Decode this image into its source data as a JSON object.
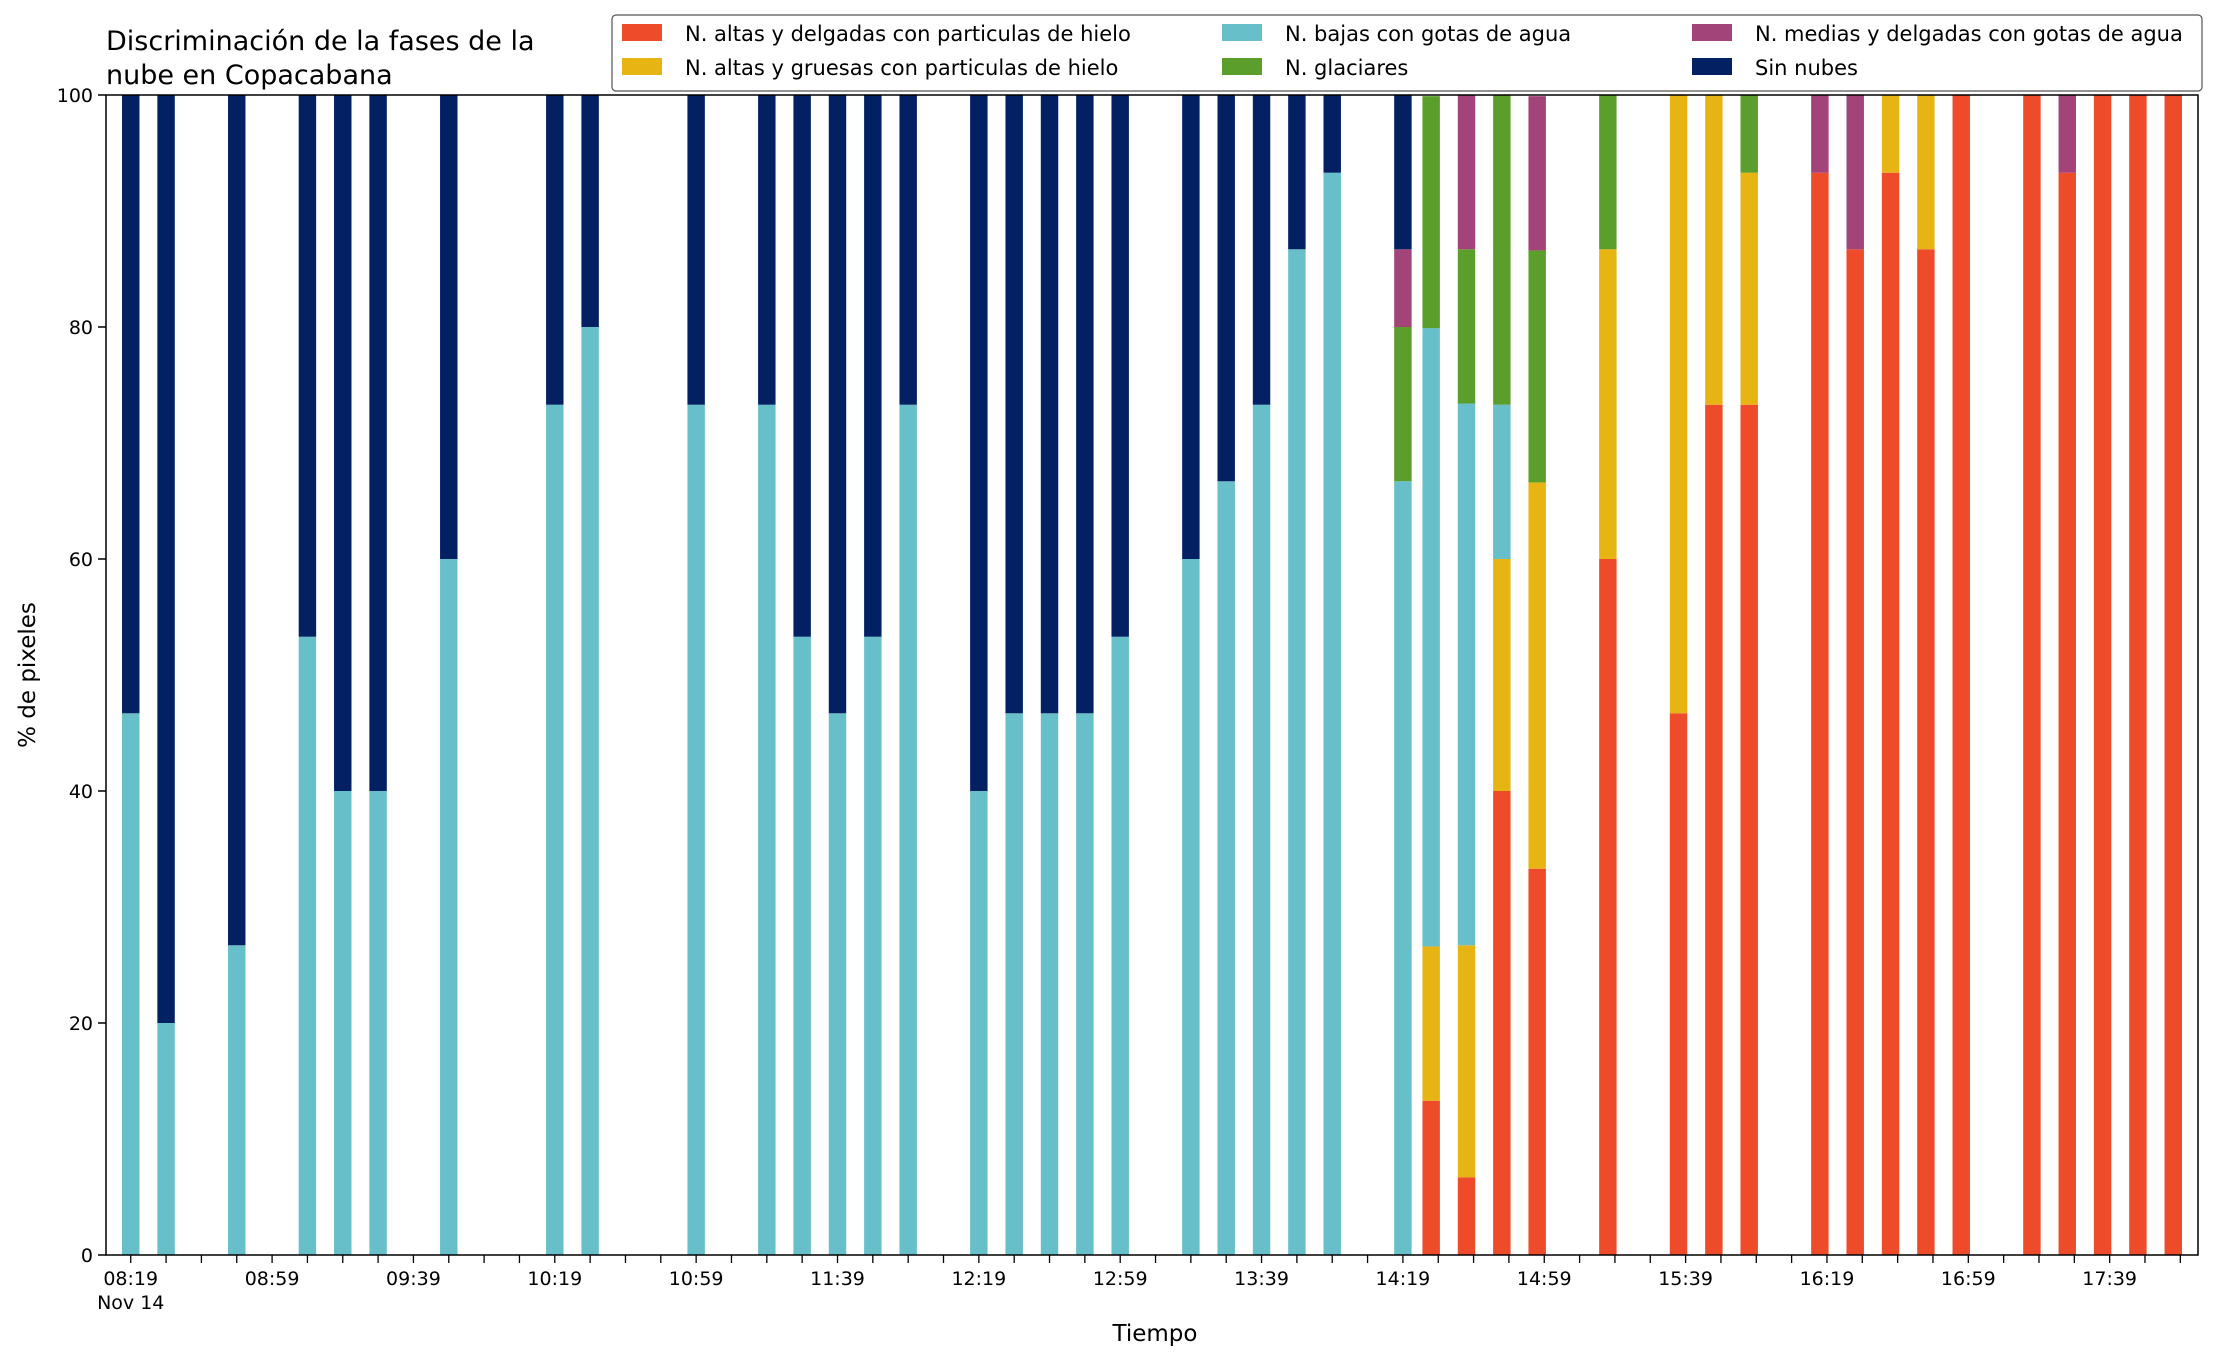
{
  "chart_data": {
    "type": "bar",
    "stacked": true,
    "title_lines": [
      "Discriminación de la fases de la",
      "nube en Copacabana"
    ],
    "xlabel": "Tiempo",
    "ylabel": "% de pixeles",
    "ylim": [
      0,
      100
    ],
    "yticks": [
      0,
      20,
      40,
      60,
      80,
      100
    ],
    "xlim_minutes": [
      "08:12",
      "18:04"
    ],
    "grid": false,
    "legend_placement": "top, 3 columns",
    "xtick_labels": [
      {
        "time": "08:19",
        "label": "08:19",
        "sublabel": "Nov 14"
      },
      {
        "time": "08:59",
        "label": "08:59"
      },
      {
        "time": "09:39",
        "label": "09:39"
      },
      {
        "time": "10:19",
        "label": "10:19"
      },
      {
        "time": "10:59",
        "label": "10:59"
      },
      {
        "time": "11:39",
        "label": "11:39"
      },
      {
        "time": "12:19",
        "label": "12:19"
      },
      {
        "time": "12:59",
        "label": "12:59"
      },
      {
        "time": "13:39",
        "label": "13:39"
      },
      {
        "time": "14:19",
        "label": "14:19"
      },
      {
        "time": "14:59",
        "label": "14:59"
      },
      {
        "time": "15:39",
        "label": "15:39"
      },
      {
        "time": "16:19",
        "label": "16:19"
      },
      {
        "time": "16:59",
        "label": "16:59"
      },
      {
        "time": "17:39",
        "label": "17:39"
      }
    ],
    "xtick_minor_minutes": 10,
    "x": [
      "08:19",
      "08:29",
      "08:49",
      "09:09",
      "09:19",
      "09:29",
      "09:49",
      "10:19",
      "10:29",
      "10:59",
      "11:19",
      "11:29",
      "11:39",
      "11:49",
      "11:59",
      "12:19",
      "12:29",
      "12:39",
      "12:49",
      "12:59",
      "13:19",
      "13:29",
      "13:39",
      "13:49",
      "13:59",
      "14:19",
      "14:27",
      "14:37",
      "14:47",
      "14:57",
      "15:17",
      "15:37",
      "15:47",
      "15:57",
      "16:17",
      "16:27",
      "16:37",
      "16:47",
      "16:57",
      "17:17",
      "17:27",
      "17:37",
      "17:47",
      "17:57"
    ],
    "series": [
      {
        "name": "N. altas y delgadas con particulas de hielo",
        "color": "#ee4b2b",
        "values": [
          0,
          0,
          0,
          0,
          0,
          0,
          0,
          0,
          0,
          0,
          0,
          0,
          0,
          0,
          0,
          0,
          0,
          0,
          0,
          0,
          0,
          0,
          0,
          0,
          0,
          0,
          13.3,
          6.7,
          40,
          33.3,
          60,
          46.7,
          73.3,
          73.3,
          93.3,
          86.7,
          93.3,
          86.7,
          100,
          100,
          93.3,
          100,
          100,
          100
        ]
      },
      {
        "name": "N. altas y gruesas con particulas de hielo",
        "color": "#e6b514",
        "values": [
          0,
          0,
          0,
          0,
          0,
          0,
          0,
          0,
          0,
          0,
          0,
          0,
          0,
          0,
          0,
          0,
          0,
          0,
          0,
          0,
          0,
          0,
          0,
          0,
          0,
          0,
          13.3,
          20,
          20,
          33.3,
          26.7,
          53.3,
          26.7,
          20,
          0,
          0,
          6.7,
          13.3,
          0,
          0,
          0,
          0,
          0,
          0
        ]
      },
      {
        "name": "N. bajas con gotas de agua",
        "color": "#67bfca",
        "values": [
          46.7,
          20,
          26.7,
          53.3,
          40,
          40,
          60,
          73.3,
          80,
          73.3,
          73.3,
          53.3,
          46.7,
          53.3,
          73.3,
          40,
          46.7,
          46.7,
          46.7,
          53.3,
          60,
          66.7,
          73.3,
          86.7,
          93.3,
          66.7,
          53.3,
          46.7,
          13.3,
          0,
          0,
          0,
          0,
          0,
          0,
          0,
          0,
          0,
          0,
          0,
          0,
          0,
          0,
          0
        ]
      },
      {
        "name": "N. glaciares",
        "color": "#5c9e2c",
        "values": [
          0,
          0,
          0,
          0,
          0,
          0,
          0,
          0,
          0,
          0,
          0,
          0,
          0,
          0,
          0,
          0,
          0,
          0,
          0,
          0,
          0,
          0,
          0,
          0,
          0,
          13.3,
          20,
          13.3,
          26.7,
          20,
          13.3,
          0,
          0,
          6.7,
          0,
          0,
          0,
          0,
          0,
          0,
          0,
          0,
          0,
          0
        ]
      },
      {
        "name": "N. medias y delgadas con gotas de agua",
        "color": "#a24379",
        "values": [
          0,
          0,
          0,
          0,
          0,
          0,
          0,
          0,
          0,
          0,
          0,
          0,
          0,
          0,
          0,
          0,
          0,
          0,
          0,
          0,
          0,
          0,
          0,
          0,
          0,
          6.7,
          0,
          13.3,
          0,
          13.3,
          0,
          0,
          0,
          0,
          6.7,
          13.3,
          0,
          0,
          0,
          0,
          6.7,
          0,
          0,
          0
        ]
      },
      {
        "name": "Sin nubes",
        "color": "#022062",
        "values": [
          53.3,
          80,
          73.3,
          46.7,
          60,
          60,
          40,
          26.7,
          20,
          26.7,
          26.7,
          46.7,
          53.3,
          46.7,
          26.7,
          60,
          53.3,
          53.3,
          53.3,
          46.7,
          40,
          33.3,
          26.7,
          13.3,
          6.7,
          13.3,
          0,
          0,
          0,
          0,
          0,
          0,
          0,
          0,
          0,
          0,
          0,
          0,
          0,
          0,
          0,
          0,
          0,
          0
        ]
      }
    ]
  }
}
